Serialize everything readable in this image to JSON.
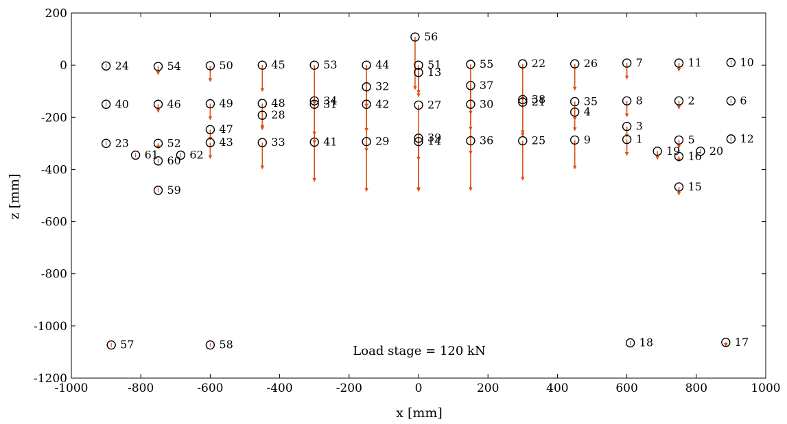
{
  "chart_data": {
    "type": "scatter",
    "title": "",
    "xlabel": "x [mm]",
    "ylabel": "z [mm]",
    "xlim": [
      -1000,
      1000
    ],
    "ylim": [
      -1200,
      200
    ],
    "xticks": [
      -1000,
      -800,
      -600,
      -400,
      -200,
      0,
      200,
      400,
      600,
      800,
      1000
    ],
    "yticks": [
      200,
      0,
      -200,
      -400,
      -600,
      -800,
      -1000,
      -1200
    ],
    "xtick_labels": [
      "-1000",
      "-800",
      "-600",
      "-400",
      "-200",
      "0",
      "200",
      "400",
      "600",
      "800",
      "1000"
    ],
    "ytick_labels": [
      "200",
      "0",
      "-200",
      "-400",
      "-600",
      "-800",
      "-1000",
      "-1200"
    ],
    "grid": false,
    "box": true,
    "annotation": "Load stage = 120 kN",
    "marker_color": "#000000",
    "arrow_color": "#d95319",
    "points": [
      {
        "id": "1",
        "x": 600,
        "z": -285,
        "dz": -60
      },
      {
        "id": "2",
        "x": 750,
        "z": -137,
        "dz": -30
      },
      {
        "id": "3",
        "x": 600,
        "z": -235,
        "dz": -40
      },
      {
        "id": "4",
        "x": 450,
        "z": -180,
        "dz": -30
      },
      {
        "id": "5",
        "x": 750,
        "z": -287,
        "dz": -30
      },
      {
        "id": "6",
        "x": 900,
        "z": -137,
        "dz": 0
      },
      {
        "id": "7",
        "x": 600,
        "z": 8,
        "dz": -60
      },
      {
        "id": "8",
        "x": 600,
        "z": -137,
        "dz": -60
      },
      {
        "id": "9",
        "x": 450,
        "z": -287,
        "dz": -110
      },
      {
        "id": "10",
        "x": 900,
        "z": 10,
        "dz": 0
      },
      {
        "id": "11",
        "x": 750,
        "z": 8,
        "dz": -30
      },
      {
        "id": "12",
        "x": 900,
        "z": -283,
        "dz": 0
      },
      {
        "id": "13",
        "x": 0,
        "z": -28,
        "dz": -80
      },
      {
        "id": "14",
        "x": 0,
        "z": -293,
        "dz": -190
      },
      {
        "id": "15",
        "x": 750,
        "z": -467,
        "dz": -30
      },
      {
        "id": "16",
        "x": 750,
        "z": -350,
        "dz": -20
      },
      {
        "id": "17",
        "x": 885,
        "z": -1063,
        "dz": -15
      },
      {
        "id": "18",
        "x": 610,
        "z": -1065,
        "dz": 0
      },
      {
        "id": "19",
        "x": 688,
        "z": -330,
        "dz": -30
      },
      {
        "id": "20",
        "x": 812,
        "z": -330,
        "dz": 0
      },
      {
        "id": "21",
        "x": 300,
        "z": -142,
        "dz": -130
      },
      {
        "id": "22",
        "x": 300,
        "z": 5,
        "dz": -140
      },
      {
        "id": "23",
        "x": -900,
        "z": -300,
        "dz": 0
      },
      {
        "id": "24",
        "x": -900,
        "z": -3,
        "dz": 0
      },
      {
        "id": "25",
        "x": 300,
        "z": -290,
        "dz": -150
      },
      {
        "id": "26",
        "x": 450,
        "z": 5,
        "dz": -100
      },
      {
        "id": "27",
        "x": 0,
        "z": -153,
        "dz": -210
      },
      {
        "id": "28",
        "x": -450,
        "z": -192,
        "dz": -50
      },
      {
        "id": "29",
        "x": -150,
        "z": -293,
        "dz": -190
      },
      {
        "id": "30",
        "x": 150,
        "z": -150,
        "dz": -190
      },
      {
        "id": "31",
        "x": -300,
        "z": -150,
        "dz": -150
      },
      {
        "id": "32",
        "x": -150,
        "z": -83,
        "dz": -170
      },
      {
        "id": "33",
        "x": -450,
        "z": -297,
        "dz": -100
      },
      {
        "id": "34",
        "x": -300,
        "z": -137,
        "dz": -130
      },
      {
        "id": "35",
        "x": 450,
        "z": -140,
        "dz": -110
      },
      {
        "id": "36",
        "x": 150,
        "z": -290,
        "dz": -190
      },
      {
        "id": "37",
        "x": 150,
        "z": -78,
        "dz": -170
      },
      {
        "id": "38",
        "x": 300,
        "z": -132,
        "dz": -130
      },
      {
        "id": "39",
        "x": 0,
        "z": -280,
        "dz": -200
      },
      {
        "id": "40",
        "x": -900,
        "z": -150,
        "dz": 0
      },
      {
        "id": "41",
        "x": -300,
        "z": -295,
        "dz": -150
      },
      {
        "id": "42",
        "x": -150,
        "z": -150,
        "dz": -180
      },
      {
        "id": "43",
        "x": -600,
        "z": -297,
        "dz": -60
      },
      {
        "id": "44",
        "x": -150,
        "z": 0,
        "dz": -160
      },
      {
        "id": "45",
        "x": -450,
        "z": 0,
        "dz": -100
      },
      {
        "id": "46",
        "x": -750,
        "z": -150,
        "dz": -30
      },
      {
        "id": "47",
        "x": -600,
        "z": -247,
        "dz": -40
      },
      {
        "id": "48",
        "x": -450,
        "z": -147,
        "dz": -100
      },
      {
        "id": "49",
        "x": -600,
        "z": -148,
        "dz": -60
      },
      {
        "id": "50",
        "x": -600,
        "z": -2,
        "dz": -60
      },
      {
        "id": "51",
        "x": 0,
        "z": 0,
        "dz": -120
      },
      {
        "id": "52",
        "x": -750,
        "z": -300,
        "dz": -20
      },
      {
        "id": "53",
        "x": -300,
        "z": 0,
        "dz": -150
      },
      {
        "id": "54",
        "x": -750,
        "z": -5,
        "dz": -30
      },
      {
        "id": "55",
        "x": 150,
        "z": 3,
        "dz": -190
      },
      {
        "id": "56",
        "x": -10,
        "z": 108,
        "dz": -200
      },
      {
        "id": "57",
        "x": -885,
        "z": -1073,
        "dz": 0
      },
      {
        "id": "58",
        "x": -600,
        "z": -1073,
        "dz": 0
      },
      {
        "id": "59",
        "x": -750,
        "z": -480,
        "dz": 0
      },
      {
        "id": "60",
        "x": -750,
        "z": -367,
        "dz": 0
      },
      {
        "id": "61",
        "x": -815,
        "z": -345,
        "dz": 0
      },
      {
        "id": "62",
        "x": -685,
        "z": -345,
        "dz": 0
      }
    ]
  }
}
